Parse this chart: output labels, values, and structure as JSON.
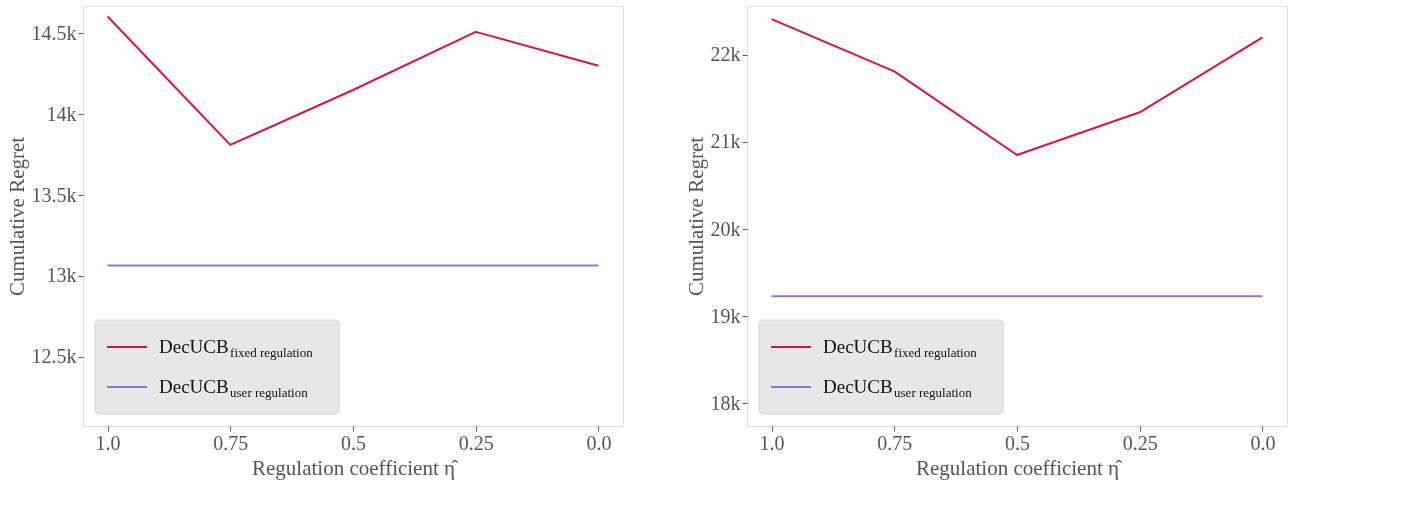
{
  "chart_data": [
    {
      "type": "line",
      "xlabel": "Regulation coefficient η̂",
      "ylabel": "Cumulative Regret",
      "categories": [
        "1.0",
        "0.75",
        "0.5",
        "0.25",
        "0.0"
      ],
      "series": [
        {
          "name": "DecUCB$_{fixed regulation}$",
          "color": "#dc143c",
          "values": [
            14605,
            13810,
            14150,
            14510,
            14300
          ]
        },
        {
          "name": "DecUCB$_{user regulation}$",
          "color": "#9370db",
          "values": [
            13064,
            13064,
            13064,
            13064,
            13064
          ]
        }
      ],
      "ylim": [
        12070,
        14670
      ],
      "yticks": [
        {
          "value": 12500,
          "label": "12.5k"
        },
        {
          "value": 13000,
          "label": "13k"
        },
        {
          "value": 13500,
          "label": "13.5k"
        },
        {
          "value": 14000,
          "label": "14k"
        },
        {
          "value": 14500,
          "label": "14.5k"
        }
      ],
      "grid": true,
      "legend": "bottom left",
      "line_style": "solid",
      "marker": "none"
    },
    {
      "type": "line",
      "xlabel": "Regulation coefficient η̂",
      "ylabel": "Cumulative Regret",
      "categories": [
        "1.0",
        "0.75",
        "0.5",
        "0.25",
        "0.0"
      ],
      "series": [
        {
          "name": "DecUCB$_{fixed regulation}$",
          "color": "#dc143c",
          "values": [
            22410,
            21810,
            20850,
            21340,
            22200
          ]
        },
        {
          "name": "DecUCB$_{user regulation}$",
          "color": "#9370db",
          "values": [
            19230,
            19230,
            19230,
            19230,
            19230
          ]
        }
      ],
      "ylim": [
        17740,
        22560
      ],
      "yticks": [
        {
          "value": 18000,
          "label": "18k"
        },
        {
          "value": 19000,
          "label": "19k"
        },
        {
          "value": 20000,
          "label": "20k"
        },
        {
          "value": 21000,
          "label": "21k"
        },
        {
          "value": 22000,
          "label": "22k"
        }
      ],
      "grid": true,
      "legend": "bottom left",
      "line_style": "solid",
      "marker": "none"
    }
  ]
}
